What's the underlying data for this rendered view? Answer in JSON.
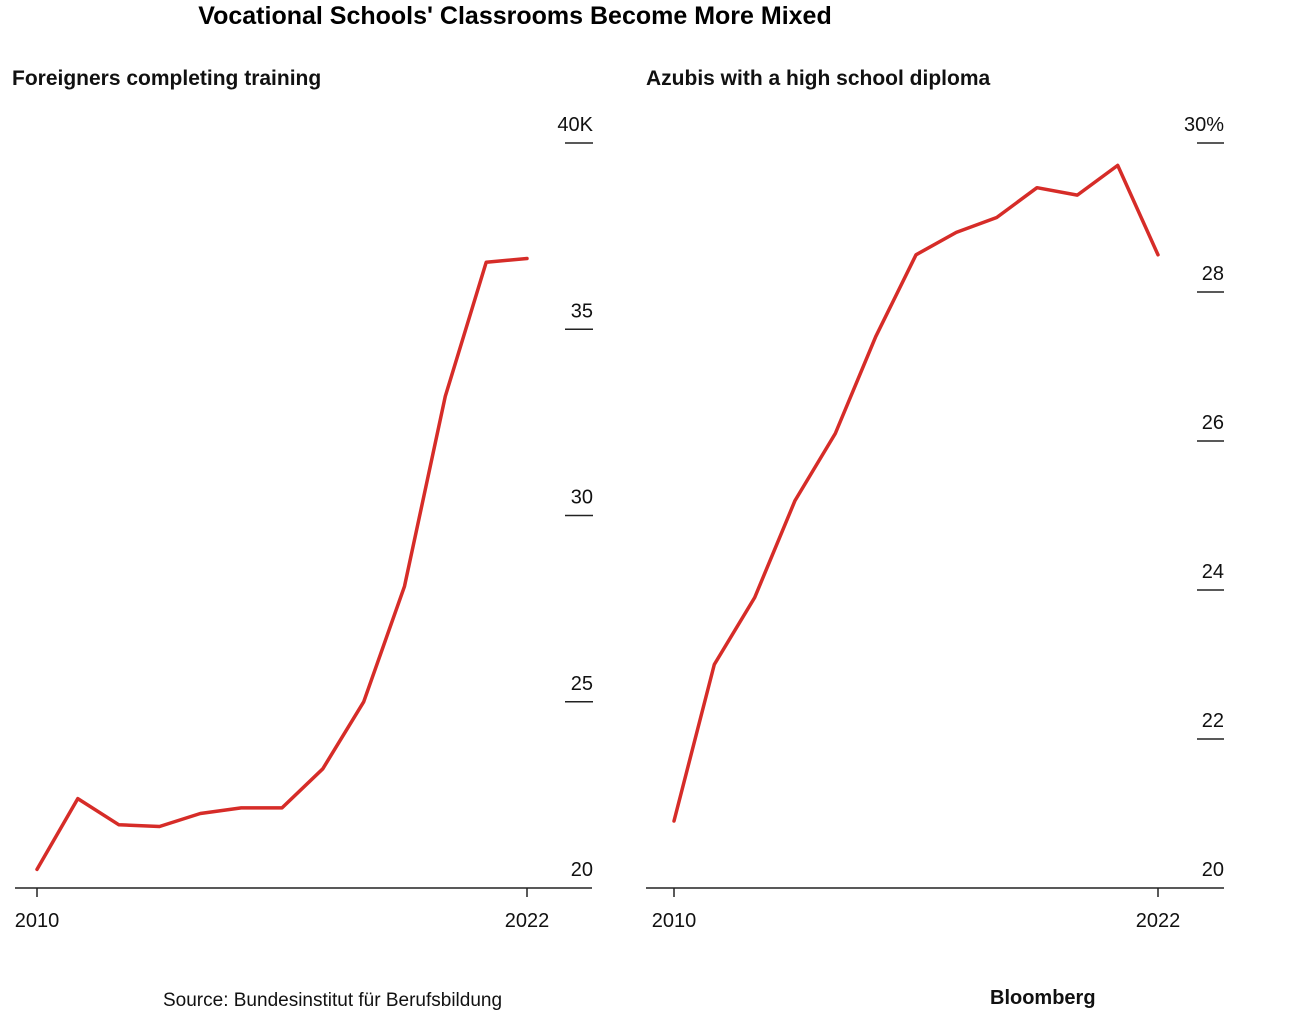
{
  "title": "Vocational Schools' Classrooms Become More Mixed",
  "colors": {
    "line": "#d62c28",
    "axis": "#222222",
    "text": "#111111"
  },
  "chart_data": [
    {
      "type": "line",
      "title": "Foreigners completing training",
      "xlabel": "",
      "ylabel": "",
      "x_ticks": [
        "2010",
        "2022"
      ],
      "y_ticks": [
        "40K",
        "35",
        "30",
        "25",
        "20"
      ],
      "y_tick_values": [
        40,
        35,
        30,
        25,
        20
      ],
      "ylim": [
        20,
        40
      ],
      "xlim": [
        2010,
        2022
      ],
      "y_axis_position": "right",
      "grid": false,
      "series": [
        {
          "x": [
            2010,
            2011,
            2012,
            2013,
            2014,
            2015,
            2016,
            2017,
            2018,
            2019,
            2020,
            2021,
            2022
          ],
          "values": [
            20.5,
            22.4,
            21.7,
            21.65,
            22.0,
            22.15,
            22.15,
            23.2,
            25.0,
            28.1,
            33.2,
            36.8,
            36.9
          ]
        }
      ]
    },
    {
      "type": "line",
      "title": "Azubis with a high school diploma",
      "xlabel": "",
      "ylabel": "",
      "x_ticks": [
        "2010",
        "2022"
      ],
      "y_ticks": [
        "30%",
        "28",
        "26",
        "24",
        "22",
        "20"
      ],
      "y_tick_values": [
        30,
        28,
        26,
        24,
        22,
        20
      ],
      "ylim": [
        20,
        30
      ],
      "xlim": [
        2010,
        2022
      ],
      "y_axis_position": "right",
      "grid": false,
      "series": [
        {
          "x": [
            2010,
            2011,
            2012,
            2013,
            2014,
            2015,
            2016,
            2017,
            2018,
            2019,
            2020,
            2021,
            2022
          ],
          "values": [
            20.9,
            23.0,
            23.9,
            25.2,
            26.1,
            27.4,
            28.5,
            28.8,
            29.0,
            29.4,
            29.3,
            29.7,
            28.5
          ]
        }
      ]
    }
  ],
  "footer": {
    "source": "Source: Bundesinstitut für Berufsbildung",
    "brand": "Bloomberg"
  }
}
